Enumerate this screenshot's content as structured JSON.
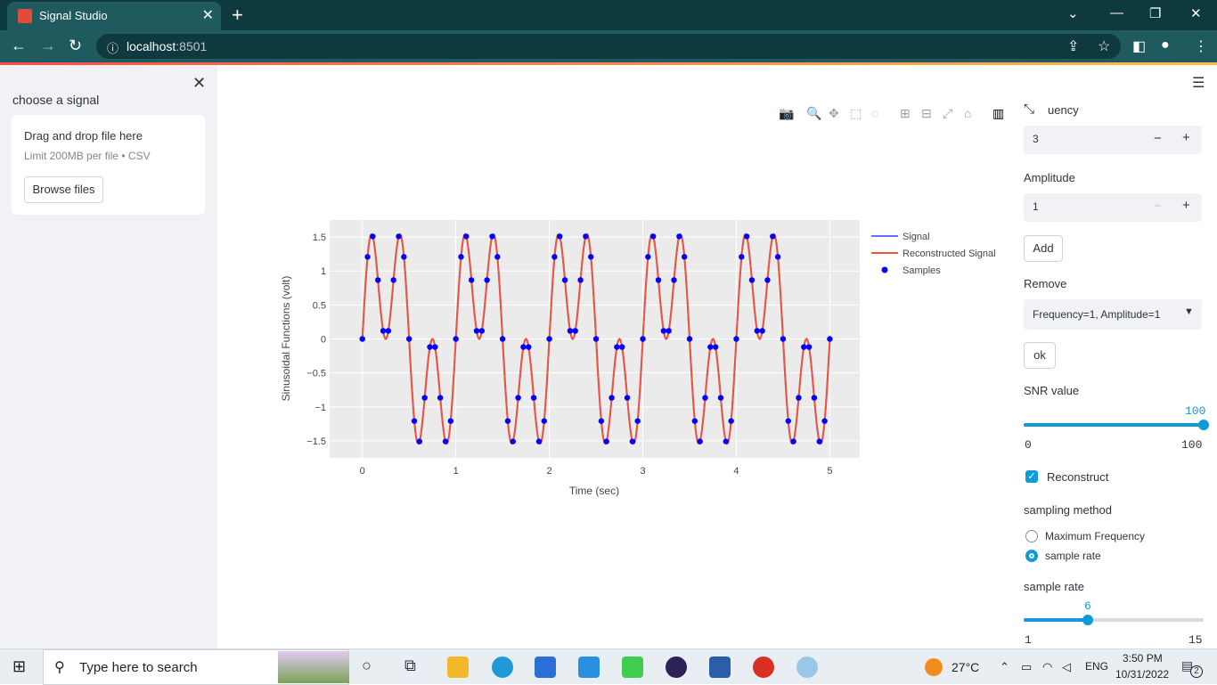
{
  "browser": {
    "tab_title": "Signal Studio",
    "url_host": "localhost",
    "url_port": ":8501"
  },
  "sidebar": {
    "label": "choose a signal",
    "uploader": {
      "drag_text": "Drag and drop file here",
      "limit_text": "Limit 200MB per file • CSV",
      "browse_label": "Browse files"
    }
  },
  "controls": {
    "frequency_label": "uency",
    "frequency_value": "3",
    "amplitude_label": "Amplitude",
    "amplitude_value": "1",
    "add_label": "Add",
    "remove_label": "Remove",
    "remove_selected": "Frequency=1, Amplitude=1",
    "ok_label": "ok",
    "snr_label": "SNR value",
    "snr_value": "100",
    "snr_min": "0",
    "snr_max": "100",
    "snr_fraction": 1.0,
    "reconstruct_label": "Reconstruct",
    "reconstruct_checked": true,
    "sampling_method_label": "sampling method",
    "sampling_options": [
      "Maximum Frequency",
      "sample rate"
    ],
    "sampling_selected": "sample rate",
    "sample_rate_label": "sample rate",
    "sample_rate_value": "6",
    "sample_rate_min": "1",
    "sample_rate_max": "15",
    "sample_rate_fraction": 0.357
  },
  "colors": {
    "accent": "#0f9bd7",
    "signal": "#636efa",
    "reconstructed": "#ef553b",
    "samples": "#0000ff",
    "plot_bg": "#ebebeb"
  },
  "chart_data": {
    "type": "line",
    "title": "",
    "xlabel": "Time (sec)",
    "ylabel": "Sinusoidal Functions (volt)",
    "xlim": [
      -0.35,
      5.32
    ],
    "ylim": [
      -1.75,
      1.75
    ],
    "x_ticks": [
      0,
      1,
      2,
      3,
      4,
      5
    ],
    "y_ticks": [
      -1.5,
      -1,
      -0.5,
      0,
      0.5,
      1,
      1.5
    ],
    "y_tick_labels": [
      "−1.5",
      "−1",
      "−0.5",
      "0",
      "0.5",
      "1",
      "1.5"
    ],
    "grid": true,
    "legend_position": "right",
    "signal_components": [
      {
        "frequency": 1,
        "amplitude": 1
      },
      {
        "frequency": 3,
        "amplitude": 1
      }
    ],
    "x_range": [
      0,
      5
    ],
    "sample_rate": 6,
    "series": [
      {
        "name": "Signal",
        "kind": "line",
        "color": "#636efa"
      },
      {
        "name": "Reconstructed Signal",
        "kind": "line",
        "color": "#ef553b"
      },
      {
        "name": "Samples",
        "kind": "markers",
        "color": "#0000ff"
      }
    ]
  },
  "taskbar": {
    "search_placeholder": "Type here to search",
    "weather": "27°C",
    "language": "ENG",
    "time": "3:50 PM",
    "date": "10/31/2022",
    "notifications": "2"
  }
}
